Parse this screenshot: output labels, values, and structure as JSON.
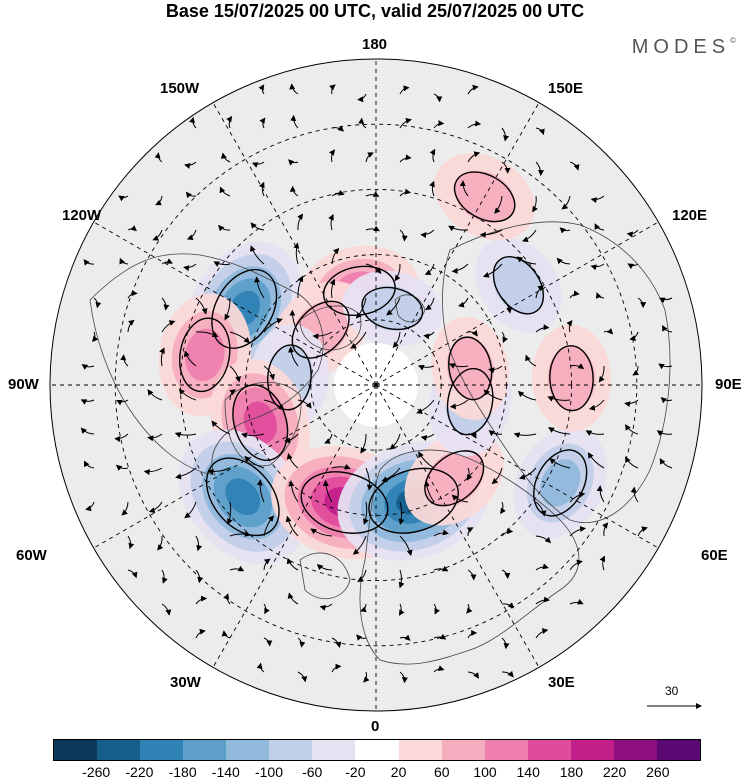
{
  "title": "Base 15/07/2025 00 UTC, valid 25/07/2025 00 UTC",
  "logo": "MODES",
  "logo_mark": "©",
  "longitude_labels": {
    "l180": "180",
    "l150w": "150W",
    "l150e": "150E",
    "l120w": "120W",
    "l120e": "120E",
    "l90w": "90W",
    "l90e": "90E",
    "l60w": "60W",
    "l60e": "60E",
    "l30w": "30W",
    "l30e": "30E",
    "l0": "0"
  },
  "reference_vector": {
    "value": "30"
  },
  "colorbar": {
    "colors": [
      "#0d3a5a",
      "#165f8c",
      "#2f82b4",
      "#5d9fc9",
      "#91b9dc",
      "#c2cfe8",
      "#e6e2f2",
      "#ffffff",
      "#fbd9d8",
      "#f5aebf",
      "#ee7fae",
      "#e04c9c",
      "#c31f8b",
      "#8e0f7e",
      "#5a0a72"
    ],
    "tick_labels": [
      "-260",
      "-220",
      "-180",
      "-140",
      "-100",
      "-60",
      "-20",
      "20",
      "60",
      "100",
      "140",
      "180",
      "220",
      "260"
    ]
  },
  "anomaly_cells": [
    {
      "name": "low-120w",
      "lon": -120,
      "lat": 55,
      "value": -190
    },
    {
      "name": "high-100w",
      "lon": -100,
      "lat": 50,
      "value": 130
    },
    {
      "name": "high-150w-arctic",
      "lon": -170,
      "lat": 68,
      "value": 120
    },
    {
      "name": "high-130w",
      "lon": -135,
      "lat": 72,
      "value": 90
    },
    {
      "name": "low-100w-north",
      "lon": -95,
      "lat": 70,
      "value": -80
    },
    {
      "name": "high-75w",
      "lon": -72,
      "lat": 62,
      "value": 150
    },
    {
      "name": "low-55w",
      "lon": -50,
      "lat": 50,
      "value": -210
    },
    {
      "name": "high-15w",
      "lon": -15,
      "lat": 62,
      "value": 210
    },
    {
      "name": "low-15e",
      "lon": 18,
      "lat": 62,
      "value": -230
    },
    {
      "name": "high-40e",
      "lon": 40,
      "lat": 62,
      "value": 90
    },
    {
      "name": "low-60e",
      "lon": 62,
      "lat": 42,
      "value": -110
    },
    {
      "name": "low-80e",
      "lon": 80,
      "lat": 68,
      "value": -90
    },
    {
      "name": "high-100e",
      "lon": 100,
      "lat": 68,
      "value": 70
    },
    {
      "name": "high-90e-mid",
      "lon": 92,
      "lat": 45,
      "value": 80
    },
    {
      "name": "low-120e",
      "lon": 125,
      "lat": 50,
      "value": -70
    },
    {
      "name": "high-150e",
      "lon": 150,
      "lat": 40,
      "value": 80
    },
    {
      "name": "low-170e",
      "lon": 168,
      "lat": 72,
      "value": -60
    }
  ]
}
